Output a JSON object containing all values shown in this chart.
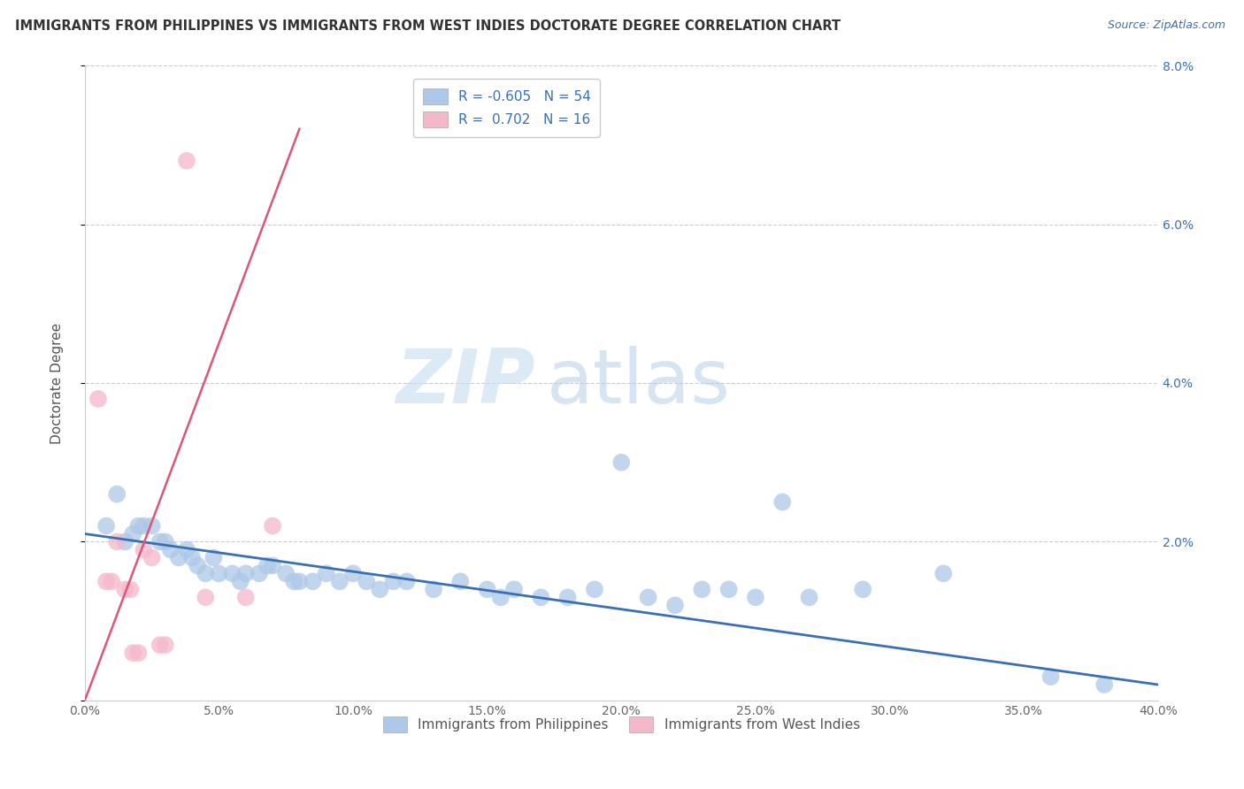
{
  "title": "IMMIGRANTS FROM PHILIPPINES VS IMMIGRANTS FROM WEST INDIES DOCTORATE DEGREE CORRELATION CHART",
  "source": "Source: ZipAtlas.com",
  "ylabel": "Doctorate Degree",
  "watermark_zip": "ZIP",
  "watermark_atlas": "atlas",
  "legend_label1": "Immigrants from Philippines",
  "legend_label2": "Immigrants from West Indies",
  "R1": -0.605,
  "N1": 54,
  "R2": 0.702,
  "N2": 16,
  "color1": "#adc8e8",
  "color2": "#f5b8cb",
  "line_color1": "#3a70b2",
  "line_color2": "#e05575",
  "xlim": [
    0.0,
    0.4
  ],
  "ylim": [
    0.0,
    0.08
  ],
  "xticks": [
    0.0,
    0.05,
    0.1,
    0.15,
    0.2,
    0.25,
    0.3,
    0.35,
    0.4
  ],
  "yticks": [
    0.0,
    0.02,
    0.04,
    0.06,
    0.08
  ],
  "xtick_labels": [
    "0.0%",
    "5.0%",
    "10.0%",
    "15.0%",
    "20.0%",
    "25.0%",
    "30.0%",
    "35.0%",
    "40.0%"
  ],
  "ytick_labels_right": [
    "",
    "2.0%",
    "4.0%",
    "6.0%",
    "8.0%"
  ],
  "blue_points": [
    [
      0.008,
      0.022
    ],
    [
      0.012,
      0.026
    ],
    [
      0.015,
      0.02
    ],
    [
      0.018,
      0.021
    ],
    [
      0.02,
      0.022
    ],
    [
      0.022,
      0.022
    ],
    [
      0.025,
      0.022
    ],
    [
      0.028,
      0.02
    ],
    [
      0.03,
      0.02
    ],
    [
      0.032,
      0.019
    ],
    [
      0.035,
      0.018
    ],
    [
      0.038,
      0.019
    ],
    [
      0.04,
      0.018
    ],
    [
      0.042,
      0.017
    ],
    [
      0.045,
      0.016
    ],
    [
      0.048,
      0.018
    ],
    [
      0.05,
      0.016
    ],
    [
      0.055,
      0.016
    ],
    [
      0.058,
      0.015
    ],
    [
      0.06,
      0.016
    ],
    [
      0.065,
      0.016
    ],
    [
      0.068,
      0.017
    ],
    [
      0.07,
      0.017
    ],
    [
      0.075,
      0.016
    ],
    [
      0.078,
      0.015
    ],
    [
      0.08,
      0.015
    ],
    [
      0.085,
      0.015
    ],
    [
      0.09,
      0.016
    ],
    [
      0.095,
      0.015
    ],
    [
      0.1,
      0.016
    ],
    [
      0.105,
      0.015
    ],
    [
      0.11,
      0.014
    ],
    [
      0.115,
      0.015
    ],
    [
      0.12,
      0.015
    ],
    [
      0.13,
      0.014
    ],
    [
      0.14,
      0.015
    ],
    [
      0.15,
      0.014
    ],
    [
      0.155,
      0.013
    ],
    [
      0.16,
      0.014
    ],
    [
      0.17,
      0.013
    ],
    [
      0.18,
      0.013
    ],
    [
      0.19,
      0.014
    ],
    [
      0.2,
      0.03
    ],
    [
      0.21,
      0.013
    ],
    [
      0.22,
      0.012
    ],
    [
      0.23,
      0.014
    ],
    [
      0.24,
      0.014
    ],
    [
      0.25,
      0.013
    ],
    [
      0.26,
      0.025
    ],
    [
      0.27,
      0.013
    ],
    [
      0.29,
      0.014
    ],
    [
      0.32,
      0.016
    ],
    [
      0.36,
      0.003
    ],
    [
      0.38,
      0.002
    ]
  ],
  "pink_points": [
    [
      0.005,
      0.038
    ],
    [
      0.008,
      0.015
    ],
    [
      0.01,
      0.015
    ],
    [
      0.012,
      0.02
    ],
    [
      0.015,
      0.014
    ],
    [
      0.017,
      0.014
    ],
    [
      0.018,
      0.006
    ],
    [
      0.02,
      0.006
    ],
    [
      0.022,
      0.019
    ],
    [
      0.025,
      0.018
    ],
    [
      0.028,
      0.007
    ],
    [
      0.03,
      0.007
    ],
    [
      0.038,
      0.068
    ],
    [
      0.045,
      0.013
    ],
    [
      0.06,
      0.013
    ],
    [
      0.07,
      0.022
    ]
  ],
  "blue_line_start_x": 0.0,
  "blue_line_start_y": 0.021,
  "blue_line_end_x": 0.4,
  "blue_line_end_y": 0.002,
  "pink_line_start_x": 0.0,
  "pink_line_start_y": 0.0,
  "pink_line_end_x": 0.08,
  "pink_line_end_y": 0.072
}
